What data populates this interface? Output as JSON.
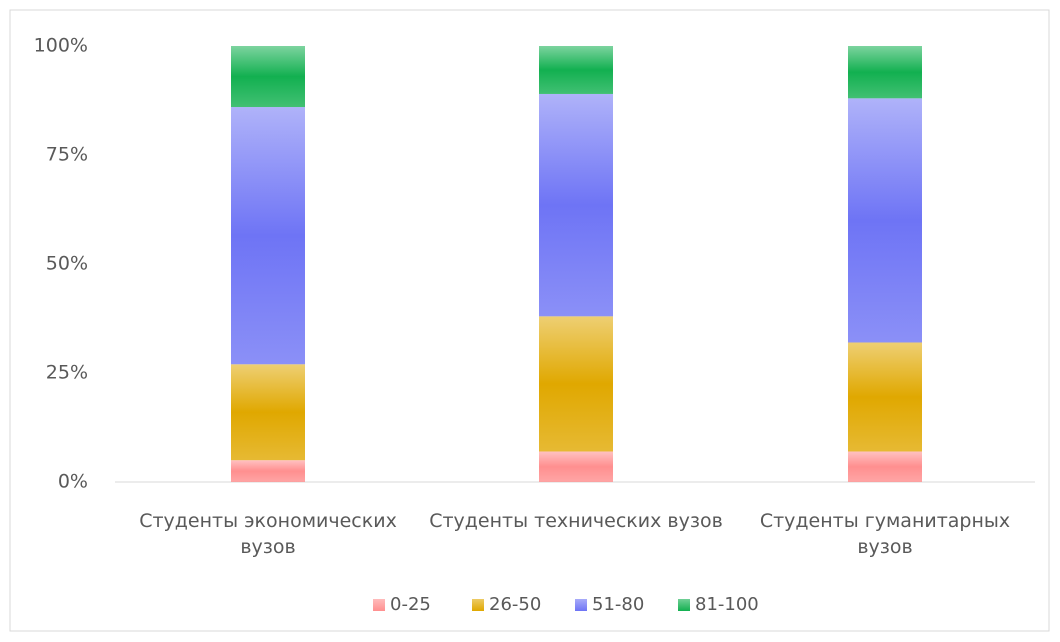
{
  "chart_data": {
    "type": "stacked_bar_100",
    "categories": [
      "Студенты экономических вузов",
      "Студенты технических вузов",
      "Студенты гуманитарных вузов"
    ],
    "series": [
      {
        "name": "0-25",
        "color": "#ff8f8f",
        "values": [
          5,
          7,
          7
        ]
      },
      {
        "name": "26-50",
        "color": "#e0a800",
        "values": [
          22,
          31,
          25
        ]
      },
      {
        "name": "51-80",
        "color": "#6e74f5",
        "values": [
          59,
          51,
          56
        ]
      },
      {
        "name": "81-100",
        "color": "#12b050",
        "values": [
          14,
          11,
          12
        ]
      }
    ],
    "ylim": [
      0,
      100
    ],
    "yticks": [
      {
        "value": 0,
        "label": "0%"
      },
      {
        "value": 25,
        "label": "25%"
      },
      {
        "value": 50,
        "label": "50%"
      },
      {
        "value": 75,
        "label": "75%"
      },
      {
        "value": 100,
        "label": "100%"
      }
    ],
    "grid": false,
    "legend": "bottom"
  }
}
